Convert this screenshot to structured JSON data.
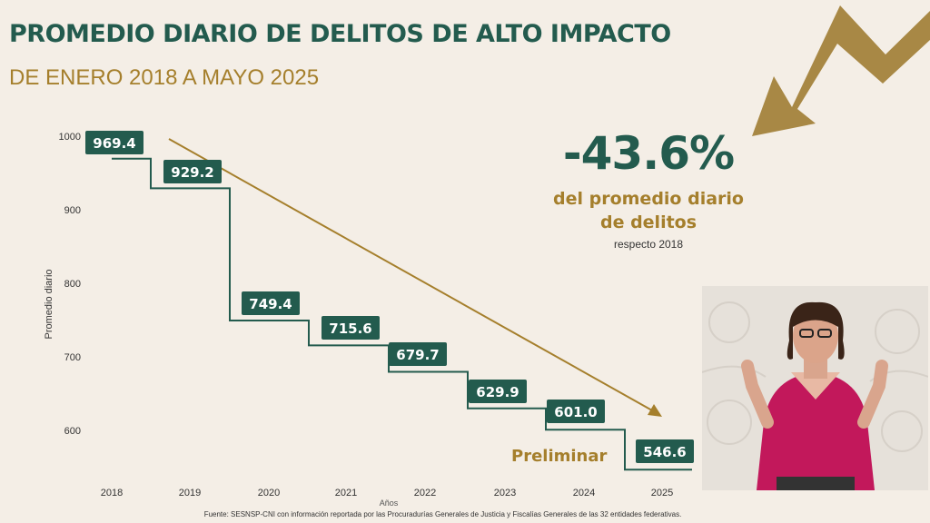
{
  "header": {
    "title": "PROMEDIO DIARIO DE DELITOS DE ALTO IMPACTO",
    "subtitle": "DE ENERO 2018 A MAYO 2025"
  },
  "highlight": {
    "percent": "-43.6%",
    "line1": "del promedio diario",
    "line2": "de delitos",
    "line3": "respecto 2018"
  },
  "preliminar_label": "Preliminar",
  "source": "Fuente: SESNSP-CNI con información reportada por las Procuradurías Generales de Justicia y Fiscalías Generales de las 32 entidades federativas.",
  "colors": {
    "green": "#235b4e",
    "gold": "#a57f2c",
    "background": "#f4eee6"
  },
  "icons": [
    "down-trend-arrow-icon"
  ],
  "chart_data": {
    "type": "line",
    "step": true,
    "categories": [
      "2018",
      "2019",
      "2020",
      "2021",
      "2022",
      "2023",
      "2024",
      "2025"
    ],
    "series": [
      {
        "values": [
          969.4,
          929.2,
          749.4,
          715.6,
          679.7,
          629.9,
          601.0,
          546.6
        ]
      }
    ],
    "value_labels": [
      "969.4",
      "929.2",
      "749.4",
      "715.6",
      "679.7",
      "629.9",
      "601.0",
      "546.6"
    ],
    "ylabel": "Promedio diario",
    "xlabel": "Años",
    "yticks": [
      600,
      700,
      800,
      900,
      1000
    ],
    "ylim": [
      550,
      1000
    ],
    "trend_line": true,
    "grid": false
  }
}
